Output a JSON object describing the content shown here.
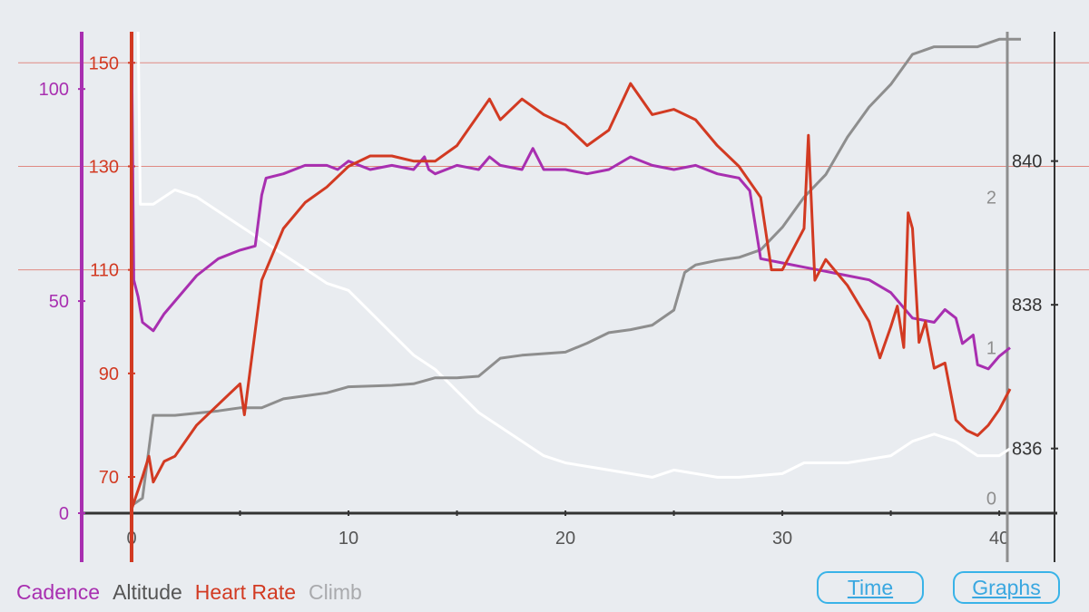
{
  "legend": {
    "cadence": "Cadence",
    "altitude": "Altitude",
    "heart_rate": "Heart Rate",
    "climb": "Climb"
  },
  "buttons": {
    "time": "Time",
    "graphs": "Graphs"
  },
  "colors": {
    "background": "#e9ecf0",
    "cadence": "#a82fb0",
    "altitude": "#8e8e8e",
    "heart_rate": "#d23a22",
    "climb": "#ffffff",
    "hr_gridline": "#e08a82",
    "axis": "#333333",
    "button": "#39b3e8"
  },
  "chart_data": {
    "type": "line",
    "x_axis": {
      "range": [
        0,
        41
      ],
      "ticks": [
        "0",
        "10",
        "20",
        "30",
        "40"
      ]
    },
    "axes": {
      "cadence": {
        "range": [
          0,
          113.5
        ],
        "ticks": [
          0,
          50,
          100
        ]
      },
      "heart_rate": {
        "range": [
          63,
          156
        ],
        "ticks": [
          70,
          90,
          110,
          130,
          150
        ]
      },
      "climb": {
        "range": [
          -0.1,
          3.1
        ],
        "ticks": [
          0,
          1,
          2
        ]
      },
      "altitude": {
        "range": [
          835.1,
          841.8
        ],
        "ticks": [
          836,
          838,
          840
        ]
      }
    },
    "grid": "heart-rate horizontal lines only",
    "legend_position": "bottom-left",
    "series": [
      {
        "name": "Cadence",
        "axis": "cadence",
        "points": [
          [
            0,
            111
          ],
          [
            0.1,
            55
          ],
          [
            0.3,
            51
          ],
          [
            0.5,
            45
          ],
          [
            1,
            43
          ],
          [
            1.5,
            47
          ],
          [
            2,
            50
          ],
          [
            3,
            56
          ],
          [
            4,
            60
          ],
          [
            5,
            62
          ],
          [
            5.7,
            63
          ],
          [
            6,
            75
          ],
          [
            6.2,
            79
          ],
          [
            7,
            80
          ],
          [
            8,
            82
          ],
          [
            9,
            82
          ],
          [
            9.5,
            81
          ],
          [
            10,
            83
          ],
          [
            11,
            81
          ],
          [
            12,
            82
          ],
          [
            13,
            81
          ],
          [
            13.5,
            84
          ],
          [
            13.7,
            81
          ],
          [
            14,
            80
          ],
          [
            15,
            82
          ],
          [
            16,
            81
          ],
          [
            16.5,
            84
          ],
          [
            17,
            82
          ],
          [
            18,
            81
          ],
          [
            18.5,
            86
          ],
          [
            19,
            81
          ],
          [
            20,
            81
          ],
          [
            21,
            80
          ],
          [
            22,
            81
          ],
          [
            23,
            84
          ],
          [
            24,
            82
          ],
          [
            25,
            81
          ],
          [
            26,
            82
          ],
          [
            27,
            80
          ],
          [
            28,
            79
          ],
          [
            28.5,
            76
          ],
          [
            29,
            60
          ],
          [
            30,
            59
          ],
          [
            31,
            58
          ],
          [
            32,
            57
          ],
          [
            33,
            56
          ],
          [
            34,
            55
          ],
          [
            35,
            52
          ],
          [
            36,
            46
          ],
          [
            37,
            45
          ],
          [
            37.5,
            48
          ],
          [
            38,
            46
          ],
          [
            38.3,
            40
          ],
          [
            38.8,
            42
          ],
          [
            39,
            35
          ],
          [
            39.5,
            34
          ],
          [
            40,
            37
          ],
          [
            40.5,
            39
          ]
        ]
      },
      {
        "name": "Heart Rate",
        "axis": "heart_rate",
        "points": [
          [
            0,
            155
          ],
          [
            0.02,
            64
          ],
          [
            0.5,
            70
          ],
          [
            0.8,
            74
          ],
          [
            1,
            69
          ],
          [
            1.5,
            73
          ],
          [
            2,
            74
          ],
          [
            3,
            80
          ],
          [
            4,
            84
          ],
          [
            5,
            88
          ],
          [
            5.2,
            82
          ],
          [
            6,
            108
          ],
          [
            7,
            118
          ],
          [
            8,
            123
          ],
          [
            9,
            126
          ],
          [
            10,
            130
          ],
          [
            11,
            132
          ],
          [
            12,
            132
          ],
          [
            13,
            131
          ],
          [
            14,
            131
          ],
          [
            15,
            134
          ],
          [
            16,
            140
          ],
          [
            16.5,
            143
          ],
          [
            17,
            139
          ],
          [
            18,
            143
          ],
          [
            19,
            140
          ],
          [
            20,
            138
          ],
          [
            21,
            134
          ],
          [
            22,
            137
          ],
          [
            23,
            146
          ],
          [
            24,
            140
          ],
          [
            25,
            141
          ],
          [
            26,
            139
          ],
          [
            27,
            134
          ],
          [
            28,
            130
          ],
          [
            29,
            124
          ],
          [
            29.5,
            110
          ],
          [
            30,
            110
          ],
          [
            30.5,
            114
          ],
          [
            31,
            118
          ],
          [
            31.2,
            136
          ],
          [
            31.5,
            108
          ],
          [
            32,
            112
          ],
          [
            33,
            107
          ],
          [
            34,
            100
          ],
          [
            34.5,
            93
          ],
          [
            35,
            99
          ],
          [
            35.3,
            103
          ],
          [
            35.6,
            95
          ],
          [
            35.8,
            121
          ],
          [
            36,
            118
          ],
          [
            36.3,
            96
          ],
          [
            36.6,
            100
          ],
          [
            37,
            91
          ],
          [
            37.5,
            92
          ],
          [
            38,
            81
          ],
          [
            38.5,
            79
          ],
          [
            39,
            78
          ],
          [
            39.5,
            80
          ],
          [
            40,
            83
          ],
          [
            40.5,
            87
          ]
        ]
      },
      {
        "name": "Climb",
        "axis": "climb",
        "points": [
          [
            0,
            -0.05
          ],
          [
            0.5,
            0
          ],
          [
            1,
            0.55
          ],
          [
            2,
            0.55
          ],
          [
            4,
            0.58
          ],
          [
            5,
            0.6
          ],
          [
            6,
            0.6
          ],
          [
            7,
            0.66
          ],
          [
            8,
            0.68
          ],
          [
            9,
            0.7
          ],
          [
            10,
            0.74
          ],
          [
            12,
            0.75
          ],
          [
            13,
            0.76
          ],
          [
            14,
            0.8
          ],
          [
            15,
            0.8
          ],
          [
            16,
            0.81
          ],
          [
            17,
            0.93
          ],
          [
            18,
            0.95
          ],
          [
            20,
            0.97
          ],
          [
            21,
            1.03
          ],
          [
            22,
            1.1
          ],
          [
            23,
            1.12
          ],
          [
            24,
            1.15
          ],
          [
            25,
            1.25
          ],
          [
            25.5,
            1.5
          ],
          [
            26,
            1.55
          ],
          [
            27,
            1.58
          ],
          [
            28,
            1.6
          ],
          [
            29,
            1.65
          ],
          [
            30,
            1.8
          ],
          [
            31,
            2.0
          ],
          [
            32,
            2.15
          ],
          [
            33,
            2.4
          ],
          [
            34,
            2.6
          ],
          [
            35,
            2.75
          ],
          [
            36,
            2.95
          ],
          [
            37,
            3.0
          ],
          [
            39,
            3.0
          ],
          [
            40,
            3.05
          ],
          [
            41,
            3.05
          ]
        ]
      },
      {
        "name": "Altitude",
        "axis": "altitude",
        "points": [
          [
            0.3,
            841.8
          ],
          [
            0.4,
            839.4
          ],
          [
            1,
            839.4
          ],
          [
            1.5,
            839.5
          ],
          [
            2,
            839.6
          ],
          [
            3,
            839.5
          ],
          [
            4,
            839.3
          ],
          [
            5,
            839.1
          ],
          [
            6,
            838.9
          ],
          [
            7,
            838.7
          ],
          [
            8,
            838.5
          ],
          [
            9,
            838.3
          ],
          [
            10,
            838.2
          ],
          [
            11,
            837.9
          ],
          [
            12,
            837.6
          ],
          [
            13,
            837.3
          ],
          [
            14,
            837.1
          ],
          [
            15,
            836.8
          ],
          [
            16,
            836.5
          ],
          [
            17,
            836.3
          ],
          [
            18,
            836.1
          ],
          [
            19,
            835.9
          ],
          [
            20,
            835.8
          ],
          [
            22,
            835.7
          ],
          [
            24,
            835.6
          ],
          [
            25,
            835.7
          ],
          [
            27,
            835.6
          ],
          [
            28,
            835.6
          ],
          [
            30,
            835.65
          ],
          [
            31,
            835.8
          ],
          [
            33,
            835.8
          ],
          [
            35,
            835.9
          ],
          [
            36,
            836.1
          ],
          [
            37,
            836.2
          ],
          [
            38,
            836.1
          ],
          [
            39,
            835.9
          ],
          [
            40,
            835.9
          ],
          [
            40.5,
            836.0
          ]
        ]
      }
    ]
  }
}
